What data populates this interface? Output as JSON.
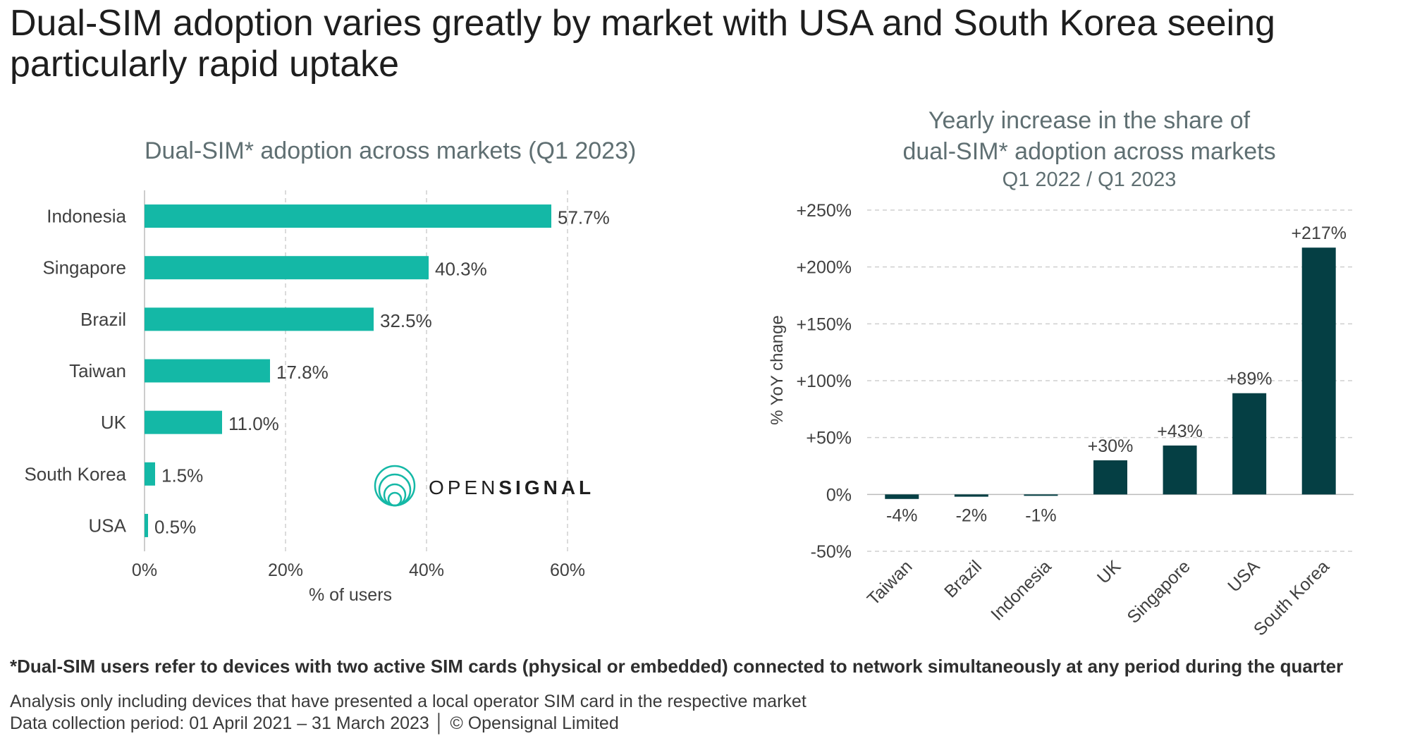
{
  "page_title": "Dual-SIM adoption varies greatly by market with USA and South Korea seeing particularly rapid uptake",
  "colors": {
    "left_bar": "#14b8a6",
    "right_bar": "#053f44",
    "grid": "#cfcfcf",
    "chart_title": "#5f6f72",
    "text": "#404040"
  },
  "brand": {
    "logo_prefix": "OPEN",
    "logo_suffix": "SIGNAL",
    "logo_icon": "opensignal-rings-icon"
  },
  "footnote": "*Dual-SIM users refer to devices with two active SIM cards  (physical or embedded) connected to network simultaneously at any period during the quarter",
  "notes": {
    "line1": "Analysis only including devices that have presented a local operator SIM card in the respective market",
    "line2": "Data collection period: 01 April 2021 – 31 March 2023  │ © Opensignal Limited"
  },
  "chart_data": [
    {
      "type": "bar",
      "orientation": "horizontal",
      "title": "Dual-SIM* adoption across markets (Q1 2023)",
      "xlabel": "% of users",
      "ylabel": "",
      "categories": [
        "Indonesia",
        "Singapore",
        "Brazil",
        "Taiwan",
        "UK",
        "South Korea",
        "USA"
      ],
      "values": [
        57.7,
        40.3,
        32.5,
        17.8,
        11.0,
        1.5,
        0.5
      ],
      "value_labels": [
        "57.7%",
        "40.3%",
        "32.5%",
        "17.8%",
        "11.0%",
        "1.5%",
        "0.5%"
      ],
      "xlim": [
        0,
        60
      ],
      "ticks": [
        0,
        20,
        40,
        60
      ],
      "tick_labels": [
        "0%",
        "20%",
        "40%",
        "60%"
      ],
      "grid": "vertical dashed"
    },
    {
      "type": "bar",
      "orientation": "vertical",
      "title_lines": [
        "Yearly increase in the share of",
        "dual-SIM* adoption across markets"
      ],
      "subtitle": "Q1 2022 / Q1 2023",
      "xlabel": "",
      "ylabel": "% YoY change",
      "categories": [
        "Taiwan",
        "Brazil",
        "Indonesia",
        "UK",
        "Singapore",
        "USA",
        "South Korea"
      ],
      "values": [
        -4,
        -2,
        -1,
        30,
        43,
        89,
        217
      ],
      "value_labels": [
        "-4%",
        "-2%",
        "-1%",
        "+30%",
        "+43%",
        "+89%",
        "+217%"
      ],
      "ylim": [
        -50,
        250
      ],
      "ticks": [
        -50,
        0,
        50,
        100,
        150,
        200,
        250
      ],
      "tick_labels": [
        "-50%",
        "0%",
        "+50%",
        "+100%",
        "+150%",
        "+200%",
        "+250%"
      ],
      "grid": "horizontal dashed"
    }
  ]
}
